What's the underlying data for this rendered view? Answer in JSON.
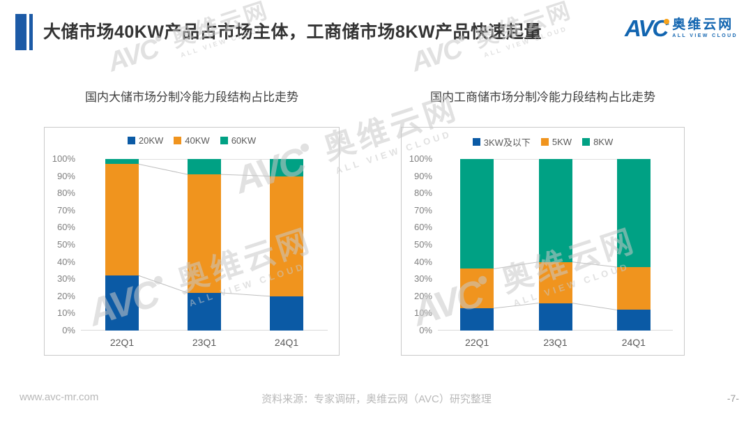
{
  "page": {
    "title": "大储市场40KW产品占市场主体，工商储市场8KW产品快速起量"
  },
  "logo": {
    "brand": "AVC",
    "name_cn": "奥维云网",
    "tagline": "ALL VIEW CLOUD",
    "brand_color": "#1265b0",
    "dot_color": "#f7a21b"
  },
  "watermark": {
    "brand": "AVC",
    "name_cn": "奥维云网",
    "tagline": "ALL VIEW CLOUD"
  },
  "chart_data": [
    {
      "type": "bar",
      "stacked": true,
      "title": "国内大储市场分制冷能力段结构占比走势",
      "categories": [
        "22Q1",
        "23Q1",
        "24Q1"
      ],
      "series": [
        {
          "name": "20KW",
          "color": "#0b5aa5",
          "values": [
            32,
            22,
            20
          ]
        },
        {
          "name": "40KW",
          "color": "#f0941e",
          "values": [
            65,
            69,
            70
          ]
        },
        {
          "name": "60KW",
          "color": "#00a184",
          "values": [
            3,
            9,
            10
          ]
        }
      ],
      "ylim": [
        0,
        100
      ],
      "yticks": [
        "0%",
        "10%",
        "20%",
        "30%",
        "40%",
        "50%",
        "60%",
        "70%",
        "80%",
        "90%",
        "100%"
      ],
      "unit": "%",
      "legend_position": "top",
      "grid": false,
      "connector_lines": true
    },
    {
      "type": "bar",
      "stacked": true,
      "title": "国内工商储市场分制冷能力段结构占比走势",
      "categories": [
        "22Q1",
        "23Q1",
        "24Q1"
      ],
      "series": [
        {
          "name": "3KW及以下",
          "color": "#0b5aa5",
          "values": [
            13,
            16,
            12
          ]
        },
        {
          "name": "5KW",
          "color": "#f0941e",
          "values": [
            23,
            24,
            25
          ]
        },
        {
          "name": "8KW",
          "color": "#00a184",
          "values": [
            64,
            60,
            63
          ]
        }
      ],
      "ylim": [
        0,
        100
      ],
      "yticks": [
        "0%",
        "10%",
        "20%",
        "30%",
        "40%",
        "50%",
        "60%",
        "70%",
        "80%",
        "90%",
        "100%"
      ],
      "unit": "%",
      "legend_position": "top",
      "grid": false,
      "connector_lines": true
    }
  ],
  "footer": {
    "website": "www.avc-mr.com",
    "source": "资料来源：专家调研，奥维云网（AVC）研究整理",
    "page_number": "-7-"
  }
}
